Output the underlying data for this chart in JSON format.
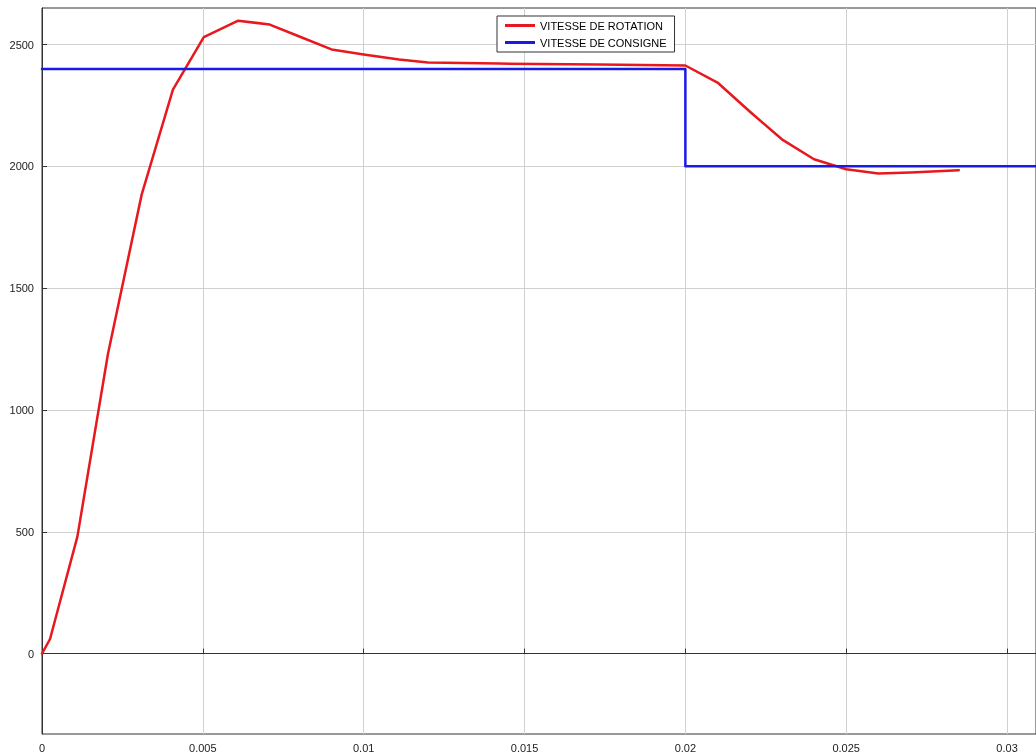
{
  "chart_data": {
    "type": "line",
    "xlim": [
      0,
      0.0309
    ],
    "xticks": [
      0,
      0.005,
      0.01,
      0.015,
      0.02,
      0.025,
      0.03
    ],
    "ylim": [
      -330,
      2650
    ],
    "yticks": [
      0,
      500,
      1000,
      1500,
      2000,
      2500
    ],
    "grid": true,
    "legend": "top",
    "marker": "none",
    "line_style": "solid",
    "series": [
      {
        "name": "VITESSE DE ROTATION",
        "color": "#e8191e",
        "x": [
          0,
          0.00025,
          0.0011,
          0.00205,
          0.0031,
          0.00407,
          0.00503,
          0.0061,
          0.00708,
          0.008,
          0.009,
          0.01,
          0.0111,
          0.012,
          0.0142,
          0.0173,
          0.02,
          0.021,
          0.022,
          0.023,
          0.024,
          0.025,
          0.026,
          0.027,
          0.0285
        ],
        "values": [
          0,
          60,
          480,
          1230,
          1885,
          2315,
          2530,
          2598,
          2582,
          2533,
          2480,
          2459,
          2439,
          2426,
          2422,
          2418,
          2414,
          2344,
          2225,
          2111,
          2029,
          1988,
          1971,
          1975,
          1984
        ]
      },
      {
        "name": "VITESSE DE CONSIGNE",
        "color": "#1a1ae6",
        "type": "step",
        "x": [
          0,
          0.02,
          0.0309
        ],
        "values": [
          2400,
          2000,
          2000
        ]
      }
    ]
  }
}
